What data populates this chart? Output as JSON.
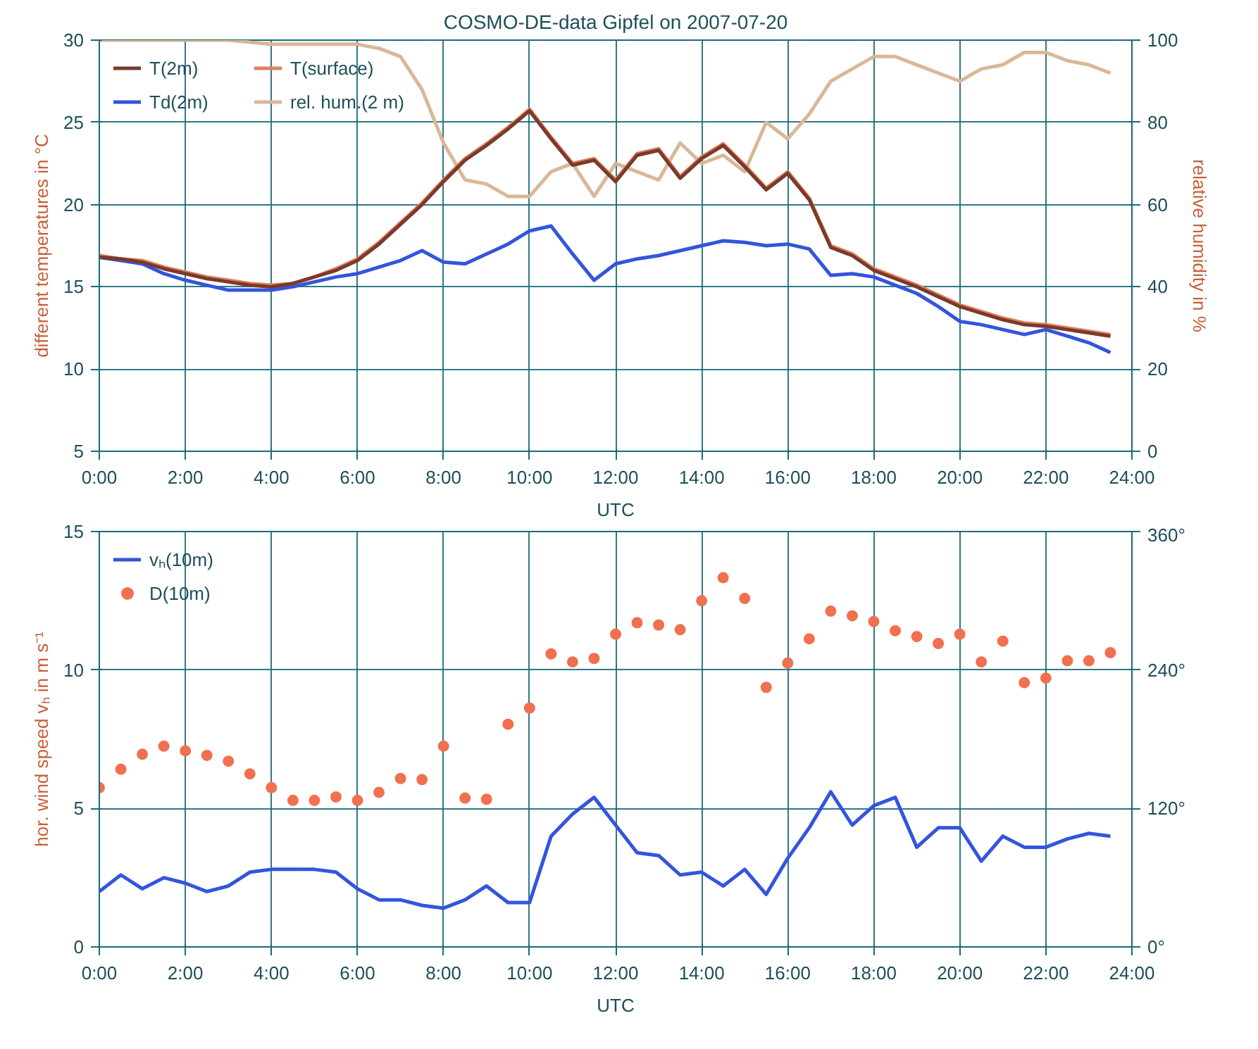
{
  "chart_data": [
    {
      "type": "line",
      "title": "COSMO-DE-data Gipfel on 2007-07-20",
      "xlabel": "UTC",
      "ylabel": "different temperatures in °C",
      "y2label": "relative humidity in %",
      "x": [
        0,
        0.5,
        1,
        1.5,
        2,
        2.5,
        3,
        3.5,
        4,
        4.5,
        5,
        5.5,
        6,
        6.5,
        7,
        7.5,
        8,
        8.5,
        9,
        9.5,
        10,
        10.5,
        11,
        11.5,
        12,
        12.5,
        13,
        13.5,
        14,
        14.5,
        15,
        15.5,
        16,
        16.5,
        17,
        17.5,
        18,
        18.5,
        19,
        19.5,
        20,
        20.5,
        21,
        21.5,
        22,
        22.5,
        23,
        23.5
      ],
      "xlim": [
        0,
        24
      ],
      "xticks": [
        {
          "value": 0,
          "label": "0:00"
        },
        {
          "value": 2,
          "label": "2:00"
        },
        {
          "value": 4,
          "label": "4:00"
        },
        {
          "value": 6,
          "label": "6:00"
        },
        {
          "value": 8,
          "label": "8:00"
        },
        {
          "value": 10,
          "label": "10:00"
        },
        {
          "value": 12,
          "label": "12:00"
        },
        {
          "value": 14,
          "label": "14:00"
        },
        {
          "value": 16,
          "label": "16:00"
        },
        {
          "value": 18,
          "label": "18:00"
        },
        {
          "value": 20,
          "label": "20:00"
        },
        {
          "value": 22,
          "label": "22:00"
        },
        {
          "value": 24,
          "label": "24:00"
        }
      ],
      "ylim": [
        5,
        30
      ],
      "yticks": [
        5,
        10,
        15,
        20,
        25,
        30
      ],
      "y2lim": [
        0,
        100
      ],
      "y2ticks": [
        0,
        20,
        40,
        60,
        80,
        100
      ],
      "grid": true,
      "legend": "top left",
      "marker": "none",
      "line_style": "solid",
      "series": [
        {
          "name": "T(2m)",
          "color": "#7a3a2a",
          "values": [
            16.8,
            16.7,
            16.5,
            16.1,
            15.8,
            15.5,
            15.3,
            15.1,
            15.0,
            15.2,
            15.6,
            16.0,
            16.6,
            17.6,
            18.8,
            20.0,
            21.4,
            22.7,
            23.6,
            24.6,
            25.7,
            24.0,
            22.4,
            22.7,
            21.4,
            23.0,
            23.3,
            21.6,
            22.8,
            23.6,
            22.3,
            20.9,
            21.9,
            20.3,
            17.4,
            16.9,
            16.0,
            15.5,
            15.0,
            14.4,
            13.8,
            13.4,
            13.0,
            12.7,
            12.6,
            12.4,
            12.2,
            12.0
          ]
        },
        {
          "name": "Td(2m)",
          "color": "#3355dd",
          "values": [
            16.8,
            16.6,
            16.4,
            15.8,
            15.4,
            15.1,
            14.8,
            14.8,
            14.8,
            15.0,
            15.3,
            15.6,
            15.8,
            16.2,
            16.6,
            17.2,
            16.5,
            16.4,
            17.0,
            17.6,
            18.4,
            18.7,
            17.0,
            15.4,
            16.4,
            16.7,
            16.9,
            17.2,
            17.5,
            17.8,
            17.7,
            17.5,
            17.6,
            17.3,
            15.7,
            15.8,
            15.6,
            15.1,
            14.6,
            13.8,
            12.9,
            12.7,
            12.4,
            12.1,
            12.4,
            12.0,
            11.6,
            11.0
          ]
        },
        {
          "name": "T(surface)",
          "color": "#e08060",
          "values": [
            16.9,
            16.7,
            16.6,
            16.2,
            15.9,
            15.6,
            15.4,
            15.2,
            15.1,
            15.2,
            15.6,
            16.1,
            16.7,
            17.7,
            18.9,
            20.1,
            21.5,
            22.8,
            23.7,
            24.7,
            25.8,
            24.1,
            22.5,
            22.8,
            21.5,
            23.1,
            23.4,
            21.7,
            22.9,
            23.7,
            22.4,
            21.0,
            22.0,
            20.4,
            17.5,
            17.0,
            16.1,
            15.6,
            15.1,
            14.5,
            13.9,
            13.5,
            13.1,
            12.8,
            12.7,
            12.5,
            12.3,
            12.1
          ]
        },
        {
          "name": "rel. hum.(2 m)",
          "color": "#d8b898",
          "axis": "y2",
          "values": [
            100,
            100,
            100,
            100,
            100,
            100,
            100,
            99.5,
            99,
            99,
            99,
            99,
            99,
            98,
            96,
            88,
            75,
            66,
            65,
            62,
            62,
            68,
            70,
            62,
            70,
            68,
            66,
            75,
            70,
            72,
            68,
            80,
            76,
            82,
            90,
            93,
            96,
            96,
            94,
            92,
            90,
            93,
            94,
            97,
            97,
            95,
            94,
            92
          ]
        }
      ]
    },
    {
      "type": "line",
      "xlabel": "UTC",
      "ylabel": "hor. wind speed vₕ in m s⁻¹",
      "x": [
        0,
        0.5,
        1,
        1.5,
        2,
        2.5,
        3,
        3.5,
        4,
        4.5,
        5,
        5.5,
        6,
        6.5,
        7,
        7.5,
        8,
        8.5,
        9,
        9.5,
        10,
        10.5,
        11,
        11.5,
        12,
        12.5,
        13,
        13.5,
        14,
        14.5,
        15,
        15.5,
        16,
        16.5,
        17,
        17.5,
        18,
        18.5,
        19,
        19.5,
        20,
        20.5,
        21,
        21.5,
        22,
        22.5,
        23,
        23.5
      ],
      "xlim": [
        0,
        24
      ],
      "xticks": [
        {
          "value": 0,
          "label": "0:00"
        },
        {
          "value": 2,
          "label": "2:00"
        },
        {
          "value": 4,
          "label": "4:00"
        },
        {
          "value": 6,
          "label": "6:00"
        },
        {
          "value": 8,
          "label": "8:00"
        },
        {
          "value": 10,
          "label": "10:00"
        },
        {
          "value": 12,
          "label": "12:00"
        },
        {
          "value": 14,
          "label": "14:00"
        },
        {
          "value": 16,
          "label": "16:00"
        },
        {
          "value": 18,
          "label": "18:00"
        },
        {
          "value": 20,
          "label": "20:00"
        },
        {
          "value": 22,
          "label": "22:00"
        },
        {
          "value": 24,
          "label": "24:00"
        }
      ],
      "ylim": [
        0,
        15
      ],
      "yticks": [
        0,
        5,
        10,
        15
      ],
      "y2lim": [
        0,
        360
      ],
      "y2ticks": [
        {
          "value": 0,
          "label": "0°"
        },
        {
          "value": 120,
          "label": "120°"
        },
        {
          "value": 240,
          "label": "240°"
        },
        {
          "value": 360,
          "label": "360°"
        }
      ],
      "grid": true,
      "legend": "top left",
      "line_style": "solid",
      "series": [
        {
          "name": "vₕ(10m)",
          "color": "#3355dd",
          "marker": "none",
          "values": [
            2.0,
            2.6,
            2.1,
            2.5,
            2.3,
            2.0,
            2.2,
            2.7,
            2.8,
            2.8,
            2.8,
            2.7,
            2.1,
            1.7,
            1.7,
            1.5,
            1.4,
            1.7,
            2.2,
            1.6,
            1.6,
            4.0,
            4.8,
            5.4,
            4.4,
            3.4,
            3.3,
            2.6,
            2.7,
            2.2,
            2.8,
            1.9,
            3.2,
            4.3,
            5.6,
            4.4,
            5.1,
            5.4,
            3.6,
            4.3,
            4.3,
            3.1,
            4.0,
            3.6,
            3.6,
            3.9,
            4.1,
            4.0
          ]
        },
        {
          "name": "D(10m)",
          "type": "scatter",
          "color": "#f07050",
          "marker": "circle",
          "axis": "y2",
          "values": [
            138,
            154,
            167,
            174,
            170,
            166,
            161,
            150,
            138,
            127,
            127,
            130,
            127,
            134,
            146,
            145,
            174,
            129,
            128,
            193,
            207,
            254,
            247,
            250,
            271,
            281,
            279,
            275,
            300,
            320,
            302,
            225,
            246,
            267,
            291,
            287,
            282,
            274,
            269,
            263,
            271,
            247,
            265,
            229,
            233,
            248,
            248,
            255
          ]
        }
      ]
    }
  ]
}
